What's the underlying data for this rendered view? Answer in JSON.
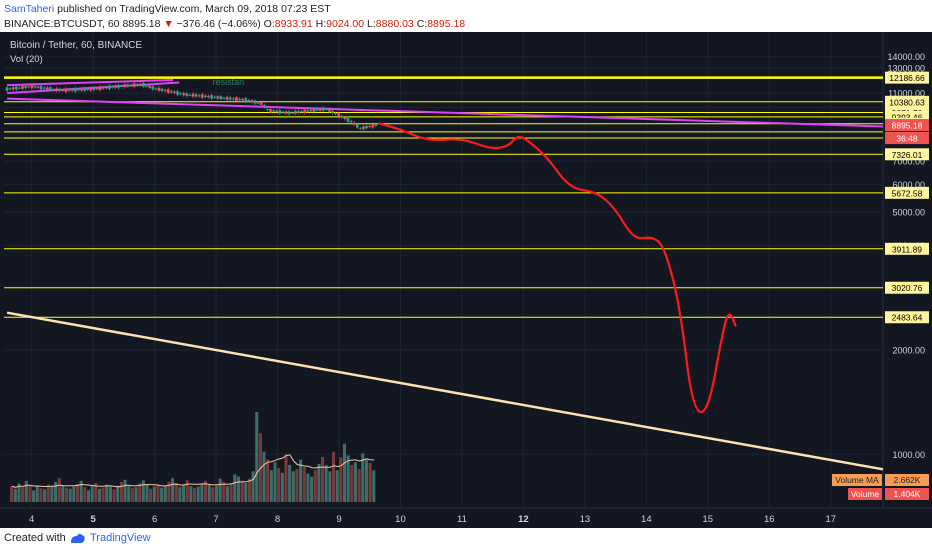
{
  "header": {
    "author": "SamTaheri",
    "published_text": " published on TradingView.com, March 09, 2018 07:23 EST",
    "symbol": "BINANCE:BTCUSDT, 60",
    "last": "8895.18",
    "down_arrow": "▼",
    "change": "−376.46 (−4.06%)",
    "o_label": "O:",
    "o": "8933.91",
    "h_label": "H:",
    "h": "9024.00",
    "l_label": "L:",
    "l": "8880.03",
    "c_label": "C:",
    "c": "8895.18"
  },
  "footer": {
    "created_with": "Created with",
    "brand": "TradingView"
  },
  "chart_data": {
    "type": "line",
    "title": "Bitcoin / Tether, 60, BINANCE",
    "subtitle": "Vol (20)",
    "y_scale": "log",
    "ylim": [
      700,
      16500
    ],
    "xlim": [
      3.55,
      17.85
    ],
    "y_ticks": [
      "14000.00",
      "13000.00",
      "11000.00",
      "10000.00",
      "7000.00",
      "6000.00",
      "5000.00",
      "4000.00",
      "2000.00",
      "1000.00"
    ],
    "x_ticks": [
      "4",
      "5",
      "6",
      "7",
      "8",
      "9",
      "10",
      "11",
      "12",
      "13",
      "14",
      "15",
      "16",
      "17"
    ],
    "bold_x_ticks": [
      "5",
      "12"
    ],
    "levels": [
      {
        "value": 12186.66,
        "label": "12186.66",
        "strong": true
      },
      {
        "value": 10380.63,
        "label": "10380.63"
      },
      {
        "value": 9671.7,
        "label": "9671.70"
      },
      {
        "value": 9393.46,
        "label": "9393.46"
      },
      {
        "value": 8975.05,
        "label": "8975.05"
      },
      {
        "value": 8500,
        "label": ""
      },
      {
        "value": 8165.31,
        "label": "8165.31"
      },
      {
        "value": 7326.01,
        "label": "7326.01"
      },
      {
        "value": 5672.58,
        "label": "5672.58"
      },
      {
        "value": 3911.89,
        "label": "3911.89"
      },
      {
        "value": 3020.76,
        "label": "3020.76"
      },
      {
        "value": 2483.64,
        "label": "2483.64"
      }
    ],
    "last_price": {
      "value": "8895.18",
      "countdown": "36:48"
    },
    "annotation": "resistan",
    "trendlines": [
      {
        "name": "upper-channel",
        "color": "#e040fb",
        "points": [
          [
            3.6,
            11600
          ],
          [
            6.3,
            12000
          ]
        ]
      },
      {
        "name": "lower-channel",
        "color": "#e040fb",
        "points": [
          [
            3.6,
            11000
          ],
          [
            6.4,
            11800
          ]
        ]
      },
      {
        "name": "descending-resistance",
        "color": "#e040fb",
        "points": [
          [
            3.6,
            10600
          ],
          [
            17.85,
            8810
          ]
        ]
      },
      {
        "name": "long-term-support",
        "color": "#ffe0b2",
        "points": [
          [
            3.6,
            2560
          ],
          [
            17.85,
            905
          ]
        ]
      }
    ],
    "price": [
      [
        3.6,
        11300
      ],
      [
        4.0,
        11500
      ],
      [
        4.5,
        11200
      ],
      [
        5.0,
        11300
      ],
      [
        5.5,
        11550
      ],
      [
        5.8,
        11650
      ],
      [
        6.0,
        11350
      ],
      [
        6.5,
        10900
      ],
      [
        7.0,
        10700
      ],
      [
        7.5,
        10500
      ],
      [
        7.75,
        10250
      ],
      [
        7.85,
        9800
      ],
      [
        8.2,
        9650
      ],
      [
        8.8,
        9900
      ],
      [
        9.0,
        9500
      ],
      [
        9.2,
        9100
      ],
      [
        9.35,
        8700
      ],
      [
        9.6,
        8895
      ]
    ],
    "projection": [
      [
        9.65,
        8990
      ],
      [
        10.0,
        8650
      ],
      [
        10.45,
        8000
      ],
      [
        11.0,
        8150
      ],
      [
        11.45,
        7600
      ],
      [
        11.75,
        7700
      ],
      [
        11.9,
        8300
      ],
      [
        12.05,
        8100
      ],
      [
        12.4,
        7150
      ],
      [
        12.75,
        5850
      ],
      [
        13.2,
        5700
      ],
      [
        13.5,
        5100
      ],
      [
        13.8,
        4150
      ],
      [
        14.1,
        4250
      ],
      [
        14.3,
        3950
      ],
      [
        14.55,
        2650
      ],
      [
        14.75,
        1350
      ],
      [
        15.0,
        1300
      ],
      [
        15.25,
        2300
      ],
      [
        15.35,
        2600
      ],
      [
        15.45,
        2350
      ]
    ],
    "volume": [
      30,
      25,
      35,
      28,
      40,
      32,
      22,
      30,
      26,
      24,
      33,
      29,
      38,
      45,
      31,
      27,
      25,
      29,
      34,
      40,
      28,
      22,
      30,
      36,
      25,
      27,
      33,
      29,
      24,
      31,
      38,
      42,
      30,
      26,
      28,
      35,
      41,
      33,
      25,
      29,
      31,
      27,
      30,
      38,
      45,
      36,
      28,
      33,
      41,
      30,
      26,
      29,
      35,
      40,
      33,
      28,
      31,
      44,
      38,
      30,
      35,
      52,
      48,
      40,
      36,
      44,
      58,
      170,
      130,
      95,
      80,
      60,
      75,
      64,
      55,
      90,
      70,
      58,
      62,
      80,
      66,
      54,
      48,
      60,
      72,
      85,
      70,
      58,
      95,
      60,
      84,
      110,
      88,
      70,
      75,
      62,
      92,
      80,
      74,
      60
    ],
    "volume_ma": {
      "label": "Volume MA",
      "value": "2.662K"
    },
    "volume_last": {
      "label": "Volume",
      "value": "1.404K"
    }
  },
  "colors": {
    "bg": "#131722",
    "grid": "#1f2433",
    "level": "#ffff00",
    "projection": "#ff1a1a",
    "trend": "#e040fb",
    "support": "#ffe0b2",
    "up": "#26a69a",
    "down": "#ef5350",
    "axis_text": "#d1d4dc"
  }
}
